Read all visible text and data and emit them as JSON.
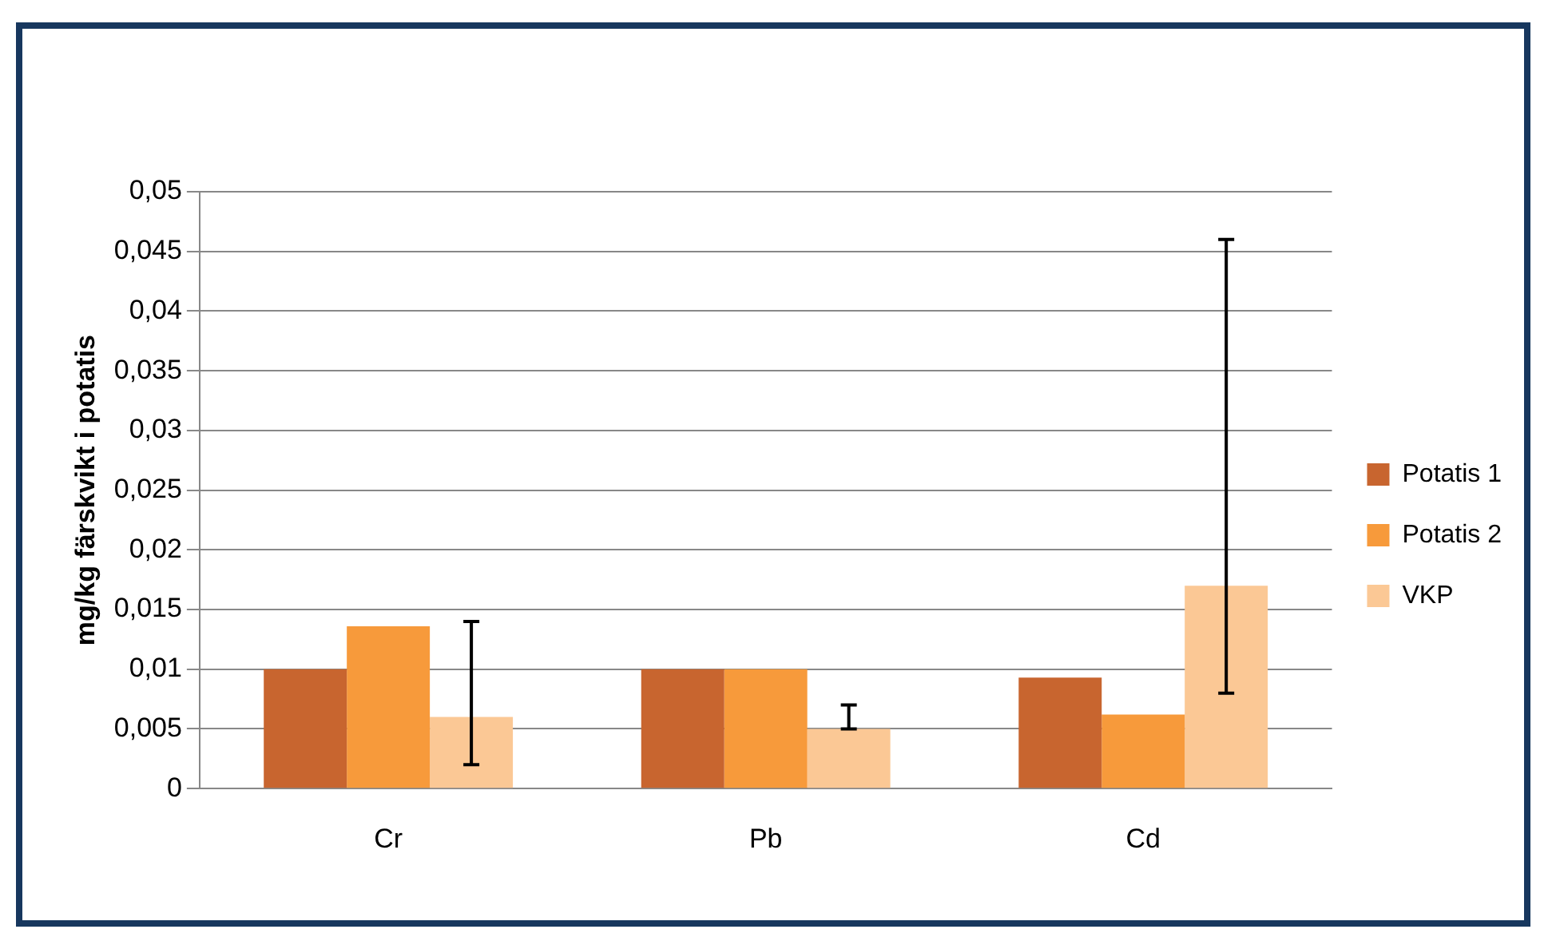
{
  "chart_data": {
    "type": "bar",
    "ylabel": "mg/kg färskvikt i potatis",
    "categories": [
      "Cr",
      "Pb",
      "Cd"
    ],
    "series": [
      {
        "name": "Potatis 1",
        "color": "#c8652f",
        "values": [
          0.01,
          0.01,
          0.0093
        ]
      },
      {
        "name": "Potatis 2",
        "color": "#f79a3b",
        "values": [
          0.0136,
          0.01,
          0.0062
        ]
      },
      {
        "name": "VKP",
        "color": "#fbc895",
        "values": [
          0.006,
          0.005,
          0.017
        ],
        "errors": [
          [
            0.002,
            0.014
          ],
          [
            0.005,
            0.007
          ],
          [
            0.008,
            0.046
          ]
        ]
      }
    ],
    "ylim": [
      0,
      0.05
    ],
    "yticks": [
      {
        "value": 0,
        "label": "0"
      },
      {
        "value": 0.005,
        "label": "0,005"
      },
      {
        "value": 0.01,
        "label": "0,01"
      },
      {
        "value": 0.015,
        "label": "0,015"
      },
      {
        "value": 0.02,
        "label": "0,02"
      },
      {
        "value": 0.025,
        "label": "0,025"
      },
      {
        "value": 0.03,
        "label": "0,03"
      },
      {
        "value": 0.035,
        "label": "0,035"
      },
      {
        "value": 0.04,
        "label": "0,04"
      },
      {
        "value": 0.045,
        "label": "0,045"
      },
      {
        "value": 0.05,
        "label": "0,05"
      }
    ],
    "grid": "y",
    "legend": "right"
  }
}
